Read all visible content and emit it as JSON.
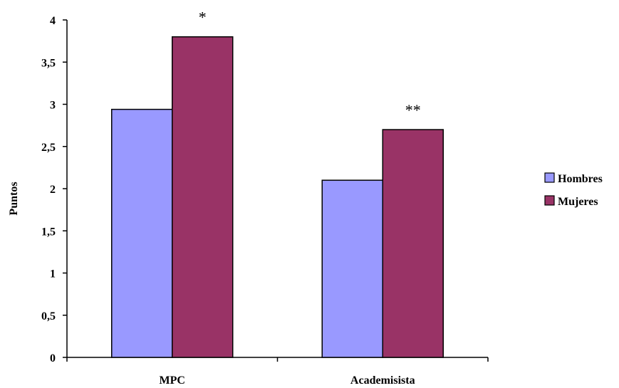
{
  "chart_data": {
    "type": "bar",
    "categories": [
      "MPC",
      "Academisista"
    ],
    "series": [
      {
        "name": "Hombres",
        "values": [
          2.94,
          2.1
        ],
        "color": "#9999FF"
      },
      {
        "name": "Mujeres",
        "values": [
          3.8,
          2.7
        ],
        "color": "#993366"
      }
    ],
    "ylabel": "Puntos",
    "ylim": [
      0,
      4
    ],
    "yticks": [
      "0",
      "0,5",
      "1",
      "1,5",
      "2",
      "2,5",
      "3",
      "3,5",
      "4"
    ],
    "ytick_values": [
      0,
      0.5,
      1,
      1.5,
      2,
      2.5,
      3,
      3.5,
      4
    ],
    "annotations": [
      "*",
      "**"
    ],
    "legend_position": "right",
    "grid": false
  }
}
